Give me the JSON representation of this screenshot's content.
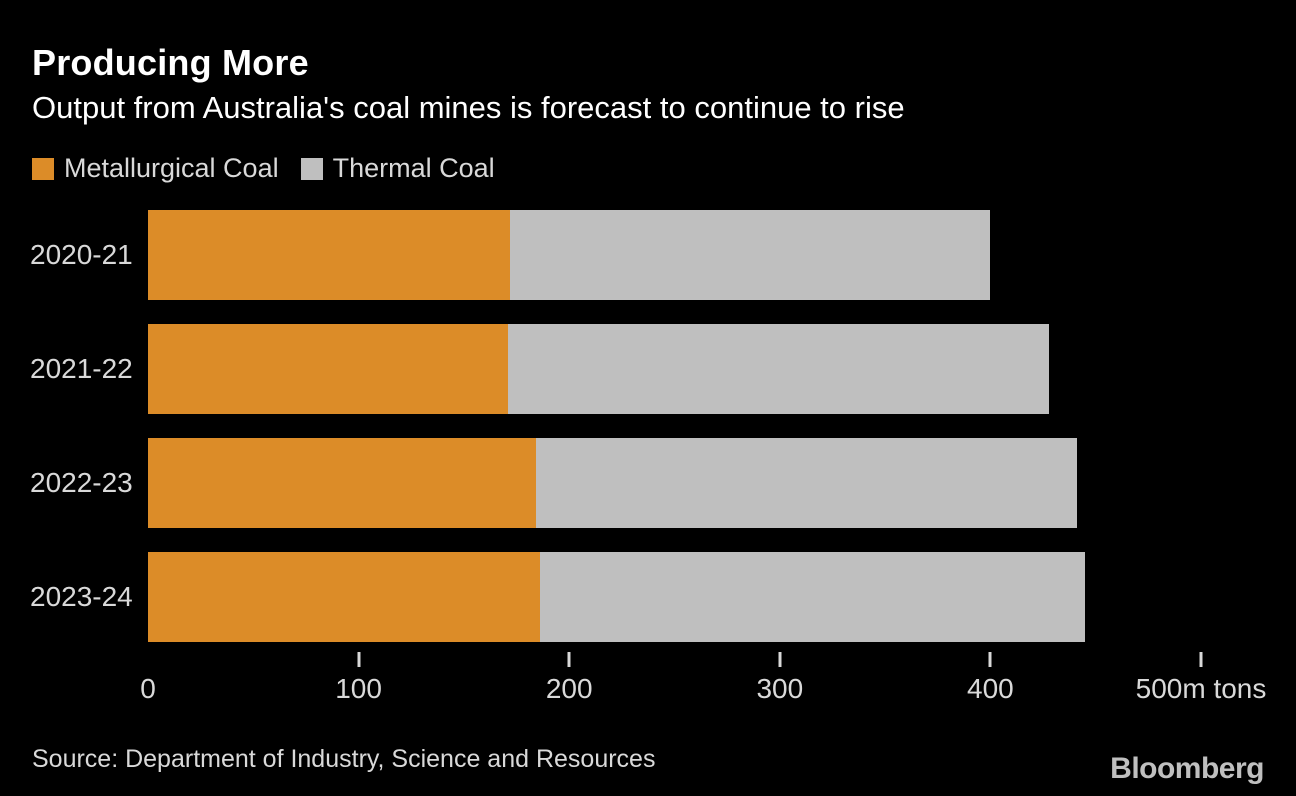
{
  "header": {
    "title": "Producing More",
    "subtitle": "Output from Australia's coal mines is forecast to continue to rise"
  },
  "legend": {
    "items": [
      {
        "label": "Metallurgical Coal",
        "color": "#DC8C28"
      },
      {
        "label": "Thermal Coal",
        "color": "#BFBFBF"
      }
    ]
  },
  "chart_data": {
    "type": "bar",
    "orientation": "horizontal",
    "stacked": true,
    "title": "Producing More",
    "subtitle": "Output from Australia's coal mines is forecast to continue to rise",
    "categories": [
      "2020-21",
      "2021-22",
      "2022-23",
      "2023-24"
    ],
    "series": [
      {
        "name": "Metallurgical Coal",
        "color": "#DC8C28",
        "values": [
          172,
          171,
          184,
          186
        ]
      },
      {
        "name": "Thermal Coal",
        "color": "#BFBFBF",
        "values": [
          228,
          257,
          257,
          259
        ]
      }
    ],
    "totals": [
      400,
      428,
      441,
      445
    ],
    "xlabel": "m tons",
    "xlim": [
      0,
      500
    ],
    "x_ticks": [
      {
        "value": 0,
        "label": "0",
        "show_mark": false
      },
      {
        "value": 100,
        "label": "100",
        "show_mark": true
      },
      {
        "value": 200,
        "label": "200",
        "show_mark": true
      },
      {
        "value": 300,
        "label": "300",
        "show_mark": true
      },
      {
        "value": 400,
        "label": "400",
        "show_mark": true
      },
      {
        "value": 500,
        "label": "500m tons",
        "show_mark": true
      }
    ],
    "grid": false,
    "legend_position": "top-left"
  },
  "footer": {
    "source": "Source: Department of Industry, Science and Resources",
    "brand": "Bloomberg"
  },
  "colors": {
    "background": "#000000",
    "title_text": "#FFFFFF",
    "subtitle_text": "#FFFFFF",
    "category_text": "#D9D9D9",
    "axis_text": "#D9D9D9",
    "tick_mark": "#D9D9D9",
    "source_text": "#D9D9D9",
    "brand_text": "#BFBFBF",
    "metallurgical": "#DC8C28",
    "thermal": "#BFBFBF"
  }
}
